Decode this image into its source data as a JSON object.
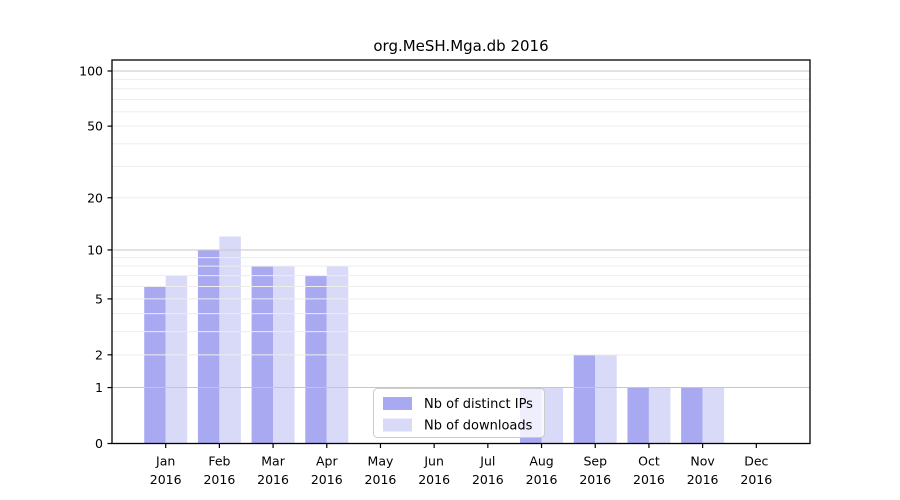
{
  "chart_data": {
    "type": "bar",
    "title": "org.MeSH.Mga.db 2016",
    "year": "2016",
    "categories": [
      "Jan",
      "Feb",
      "Mar",
      "Apr",
      "May",
      "Jun",
      "Jul",
      "Aug",
      "Sep",
      "Oct",
      "Nov",
      "Dec"
    ],
    "series": [
      {
        "name": "Nb of distinct IPs",
        "color": "#a9a9f2",
        "values": [
          6,
          10,
          8,
          7,
          0,
          0,
          0,
          1,
          2,
          1,
          1,
          0
        ]
      },
      {
        "name": "Nb of downloads",
        "color": "#d9d9f8",
        "values": [
          7,
          12,
          8,
          8,
          0,
          0,
          0,
          1,
          2,
          1,
          1,
          0
        ]
      }
    ],
    "xlabel": "",
    "ylabel": "",
    "yscale": "log1p",
    "ylim": [
      0,
      115
    ],
    "yticks": [
      0,
      1,
      2,
      5,
      10,
      20,
      50,
      100
    ],
    "major_gridlines": [
      1,
      10,
      100
    ],
    "minor_gridlines": [
      2,
      3,
      4,
      5,
      6,
      7,
      8,
      9,
      20,
      30,
      40,
      50,
      60,
      70,
      80,
      90
    ],
    "grid": true,
    "grid_on_top_of_bars": true,
    "legend_position": "lower-center-left-inside",
    "colors": {
      "major_grid": "#c6c6c6",
      "minor_grid": "#ededed",
      "axis": "#000000",
      "text": "#000000",
      "legend_border": "#cccccc",
      "legend_background": "rgba(255,255,255,0.8)",
      "background": "#ffffff"
    }
  }
}
